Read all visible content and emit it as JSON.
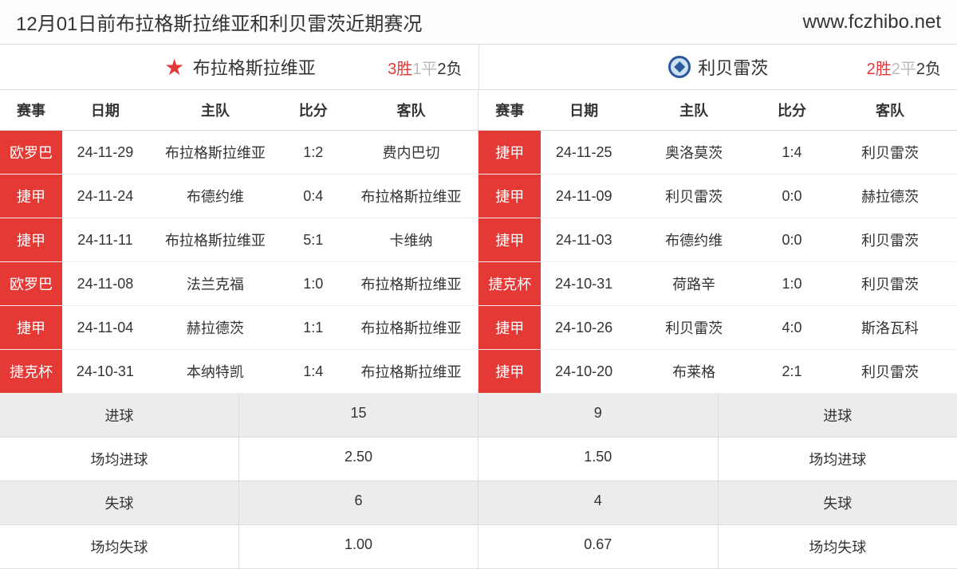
{
  "header": {
    "title": "12月01日前布拉格斯拉维亚和利贝雷茨近期赛况",
    "url": "www.fczhibo.net"
  },
  "columns": {
    "comp": "赛事",
    "date": "日期",
    "home": "主队",
    "score": "比分",
    "away": "客队"
  },
  "teamA": {
    "name": "布拉格斯拉维亚",
    "record": {
      "win": "3胜",
      "draw": "1平",
      "loss": "2负"
    },
    "matches": [
      {
        "comp": "欧罗巴",
        "date": "24-11-29",
        "home": "布拉格斯拉维亚",
        "score": "1:2",
        "away": "费内巴切"
      },
      {
        "comp": "捷甲",
        "date": "24-11-24",
        "home": "布德约维",
        "score": "0:4",
        "away": "布拉格斯拉维亚"
      },
      {
        "comp": "捷甲",
        "date": "24-11-11",
        "home": "布拉格斯拉维亚",
        "score": "5:1",
        "away": "卡维纳"
      },
      {
        "comp": "欧罗巴",
        "date": "24-11-08",
        "home": "法兰克福",
        "score": "1:0",
        "away": "布拉格斯拉维亚"
      },
      {
        "comp": "捷甲",
        "date": "24-11-04",
        "home": "赫拉德茨",
        "score": "1:1",
        "away": "布拉格斯拉维亚"
      },
      {
        "comp": "捷克杯",
        "date": "24-10-31",
        "home": "本纳特凯",
        "score": "1:4",
        "away": "布拉格斯拉维亚"
      }
    ],
    "stats": {
      "goals_label": "进球",
      "goals": "15",
      "avg_goals_label": "场均进球",
      "avg_goals": "2.50",
      "conceded_label": "失球",
      "conceded": "6",
      "avg_conceded_label": "场均失球",
      "avg_conceded": "1.00"
    }
  },
  "teamB": {
    "name": "利贝雷茨",
    "record": {
      "win": "2胜",
      "draw": "2平",
      "loss": "2负"
    },
    "matches": [
      {
        "comp": "捷甲",
        "date": "24-11-25",
        "home": "奥洛莫茨",
        "score": "1:4",
        "away": "利贝雷茨"
      },
      {
        "comp": "捷甲",
        "date": "24-11-09",
        "home": "利贝雷茨",
        "score": "0:0",
        "away": "赫拉德茨"
      },
      {
        "comp": "捷甲",
        "date": "24-11-03",
        "home": "布德约维",
        "score": "0:0",
        "away": "利贝雷茨"
      },
      {
        "comp": "捷克杯",
        "date": "24-10-31",
        "home": "荷路辛",
        "score": "1:0",
        "away": "利贝雷茨"
      },
      {
        "comp": "捷甲",
        "date": "24-10-26",
        "home": "利贝雷茨",
        "score": "4:0",
        "away": "斯洛瓦科"
      },
      {
        "comp": "捷甲",
        "date": "24-10-20",
        "home": "布莱格",
        "score": "2:1",
        "away": "利贝雷茨"
      }
    ],
    "stats": {
      "goals_label": "进球",
      "goals": "9",
      "avg_goals_label": "场均进球",
      "avg_goals": "1.50",
      "conceded_label": "失球",
      "conceded": "4",
      "avg_conceded_label": "场均失球",
      "avg_conceded": "0.67"
    }
  },
  "styling": {
    "comp_bg": "#e53935",
    "comp_fg": "#ffffff",
    "win_color": "#e23838",
    "draw_color": "#bbbbbb",
    "loss_color": "#333333",
    "alt_row_bg": "#ececec",
    "border_color": "#dddddd"
  }
}
